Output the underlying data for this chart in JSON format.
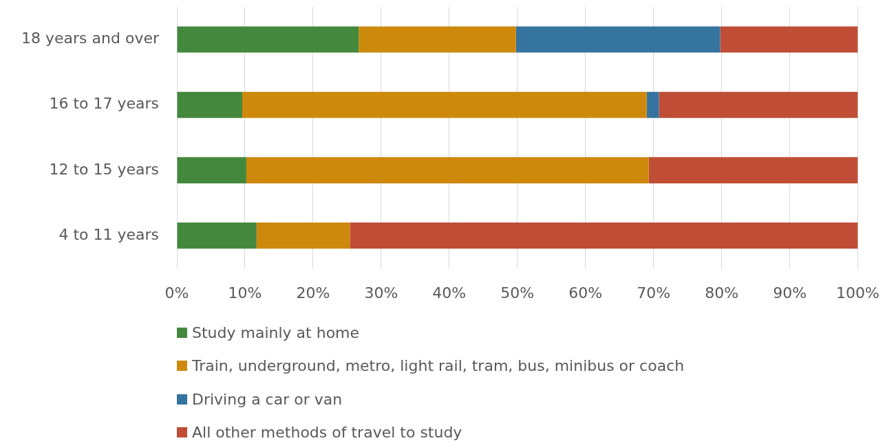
{
  "chart_data": {
    "type": "bar",
    "orientation": "horizontal",
    "stacked": true,
    "categories": [
      "18 years and over",
      "16 to 17 years",
      "12 to 15 years",
      "4 to 11 years"
    ],
    "series": [
      {
        "name": "Study mainly at home",
        "color": "#44883e",
        "values": [
          26.7,
          9.6,
          10.2,
          11.7
        ]
      },
      {
        "name": "Train, underground, metro, light rail, tram, bus, minibus or coach",
        "color": "#cd890c",
        "values": [
          23.1,
          59.4,
          59.1,
          13.7
        ]
      },
      {
        "name": "Driving a car or van",
        "color": "#35749e",
        "values": [
          30.0,
          1.8,
          0,
          0
        ]
      },
      {
        "name": "All other methods of travel to study",
        "color": "#c04d36",
        "values": [
          20.2,
          29.2,
          30.7,
          74.6
        ]
      }
    ],
    "xlim": [
      0,
      100
    ],
    "xticks": [
      {
        "value": 0,
        "label": "0%"
      },
      {
        "value": 10,
        "label": "10%"
      },
      {
        "value": 20,
        "label": "20%"
      },
      {
        "value": 30,
        "label": "30%"
      },
      {
        "value": 40,
        "label": "40%"
      },
      {
        "value": 50,
        "label": "50%"
      },
      {
        "value": 60,
        "label": "60%"
      },
      {
        "value": 70,
        "label": "70%"
      },
      {
        "value": 80,
        "label": "80%"
      },
      {
        "value": 90,
        "label": "90%"
      },
      {
        "value": 100,
        "label": "100%"
      }
    ],
    "grid": "x",
    "legend": "bottom"
  }
}
